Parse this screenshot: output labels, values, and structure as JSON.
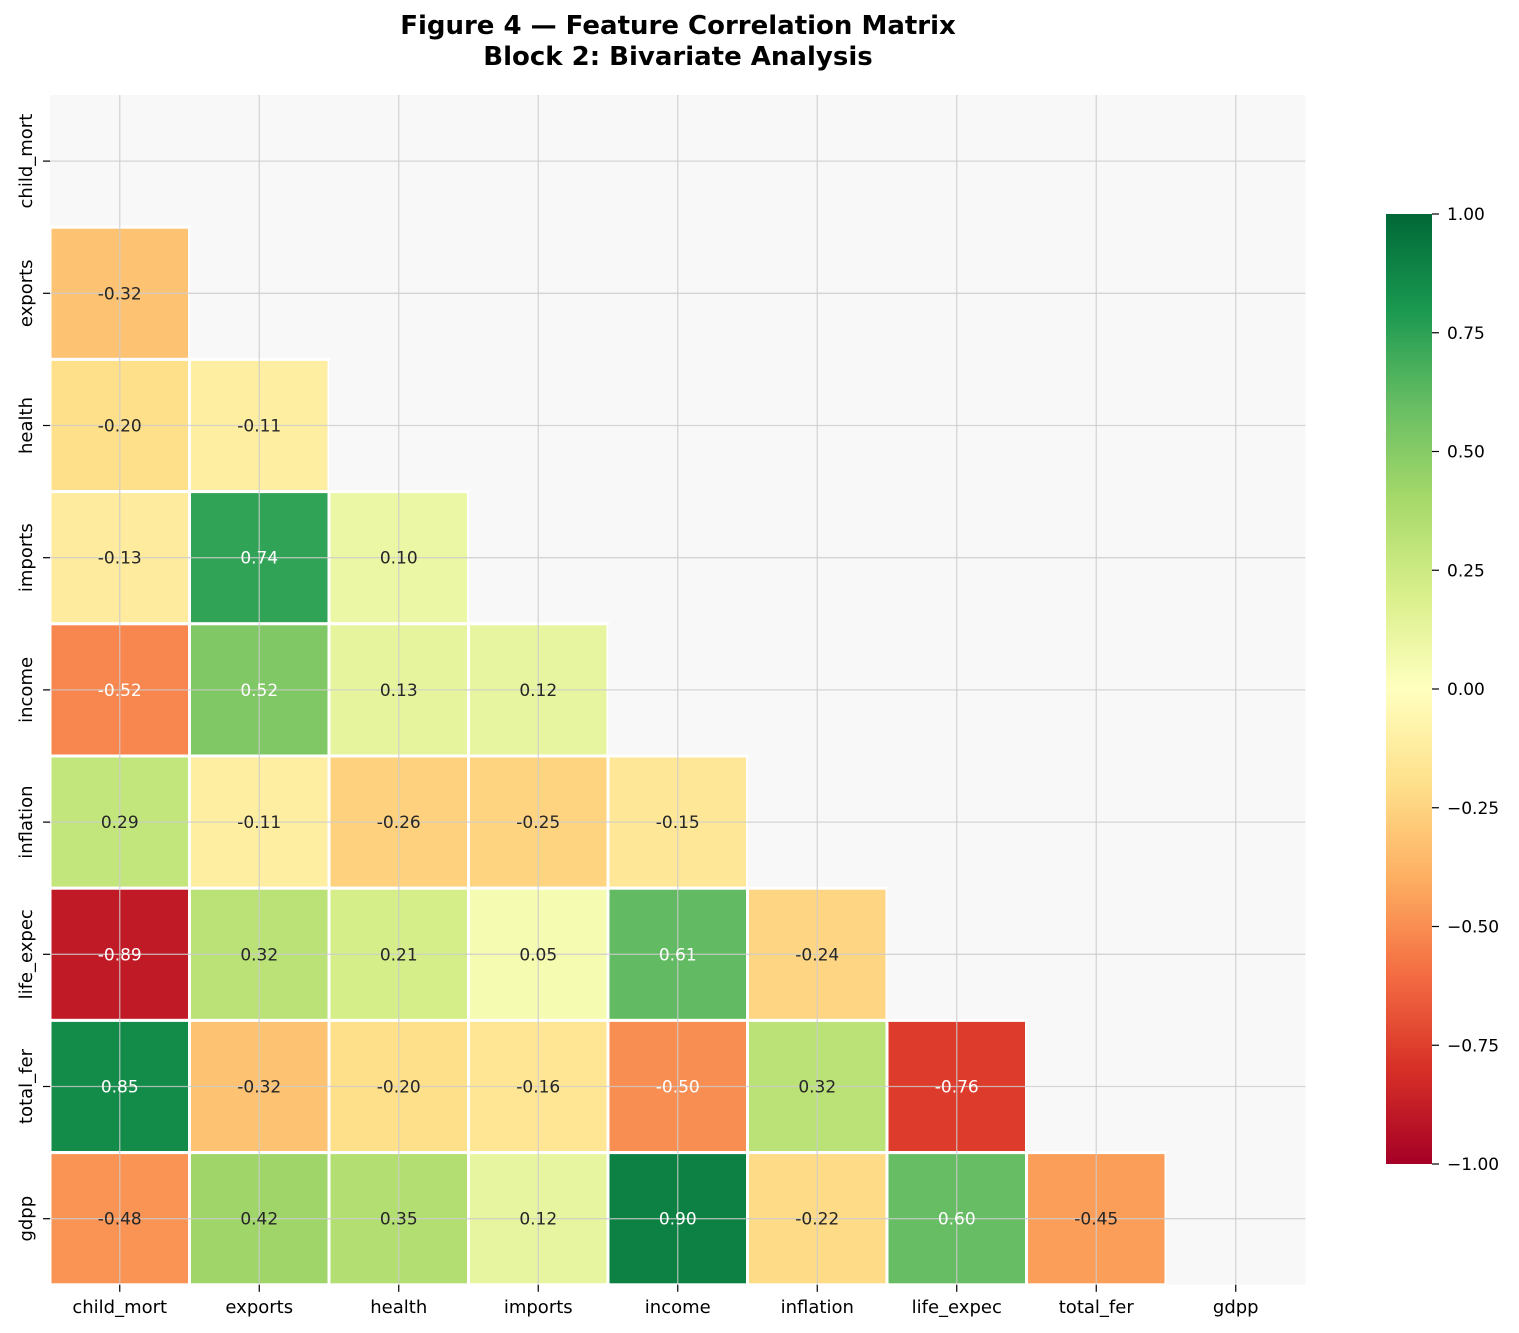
{
  "chart_data": {
    "type": "heatmap",
    "title_line1": "Figure 4 — Feature Correlation Matrix",
    "title_line2": "Block 2: Bivariate Analysis",
    "variables": [
      "child_mort",
      "exports",
      "health",
      "imports",
      "income",
      "inflation",
      "life_expec",
      "total_fer",
      "gdpp"
    ],
    "mask": "upper-triangle-including-diagonal",
    "lower_triangle": [
      [],
      [
        -0.32
      ],
      [
        -0.2,
        -0.11
      ],
      [
        -0.13,
        0.74,
        0.1
      ],
      [
        -0.52,
        0.52,
        0.13,
        0.12
      ],
      [
        0.29,
        -0.11,
        -0.26,
        -0.25,
        -0.15
      ],
      [
        -0.89,
        0.32,
        0.21,
        0.05,
        0.61,
        -0.24
      ],
      [
        0.85,
        -0.32,
        -0.2,
        -0.16,
        -0.5,
        0.32,
        -0.76
      ],
      [
        -0.48,
        0.42,
        0.35,
        0.12,
        0.9,
        -0.22,
        0.6,
        -0.45
      ]
    ],
    "value_format": "0.00",
    "colormap": "RdYlGn",
    "vmin": -1.0,
    "vmax": 1.0,
    "colorbar_ticks": [
      "1.00",
      "0.75",
      "0.50",
      "0.25",
      "0.00",
      "−0.25",
      "−0.50",
      "−0.75",
      "−1.00"
    ],
    "colorbar_tick_values": [
      1.0,
      0.75,
      0.5,
      0.25,
      0.0,
      -0.25,
      -0.5,
      -0.75,
      -1.0
    ],
    "grid": true,
    "colors": {
      "masked_cell": "#f8f8f8",
      "cell_border": "#ffffff",
      "grid_line": "#cccccc",
      "text_dark": "#262626",
      "text_light": "#ffffff"
    }
  }
}
